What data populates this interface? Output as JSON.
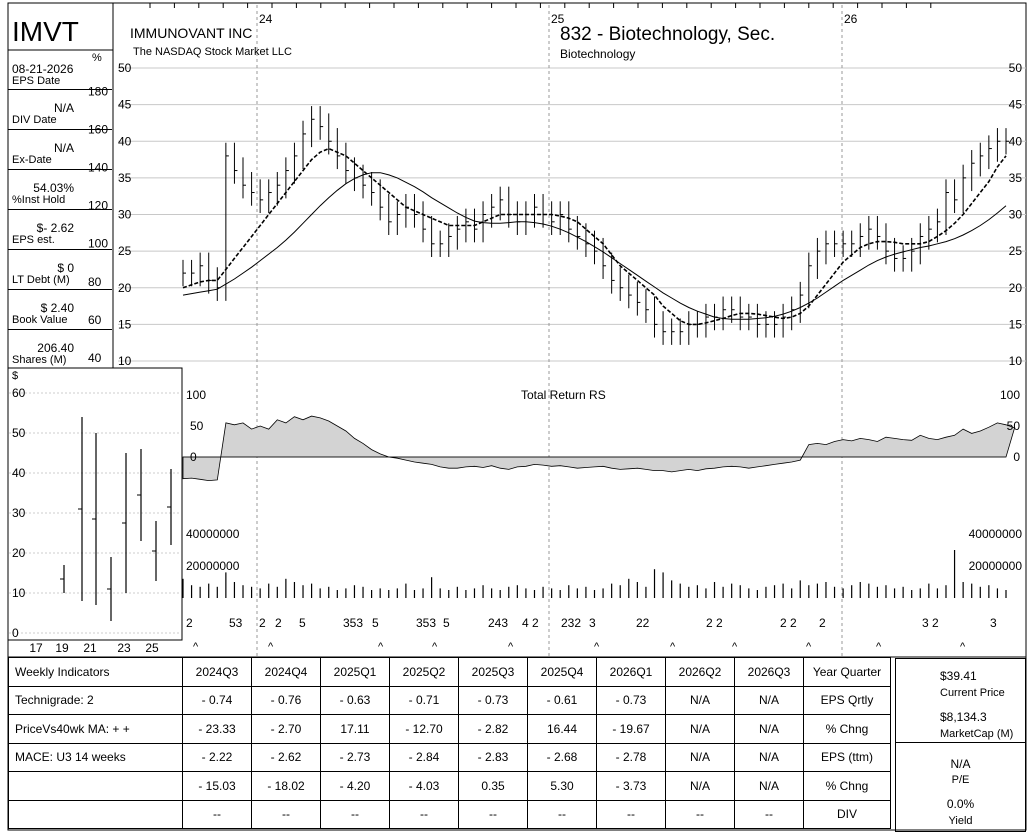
{
  "header": {
    "ticker": "IMVT",
    "company": "IMMUNOVANT INC",
    "exchange": "The NASDAQ Stock Market LLC",
    "group": "832 - Biotechnology, Sec.",
    "subgroup": "Biotechnology",
    "pct_symbol": "%",
    "dollar_symbol": "$"
  },
  "metrics": [
    {
      "value": "08-21-2026",
      "label": "EPS Date"
    },
    {
      "value": "N/A",
      "label": "DIV Date"
    },
    {
      "value": "N/A",
      "label": "Ex-Date"
    },
    {
      "value": "54.03%",
      "label": "%Inst Hold"
    },
    {
      "value": "$- 2.62",
      "label": "EPS est."
    },
    {
      "value": "$ 0",
      "label": "LT Debt (M)"
    },
    {
      "value": "$ 2.40",
      "label": "Book Value"
    },
    {
      "value": "206.40",
      "label": "Shares (M)"
    }
  ],
  "chart_data": [
    {
      "type": "line",
      "title": "",
      "subtype": "weekly price bars (OHLC) with 10-week and 40-week moving averages",
      "x_year_labels": [
        "24",
        "25",
        "26"
      ],
      "y_ticks": [
        10,
        15,
        20,
        25,
        30,
        35,
        40,
        45,
        50
      ],
      "ylim": [
        10,
        50
      ],
      "pct_axis_ticks": [
        40,
        60,
        80,
        100,
        120,
        140,
        160,
        180
      ],
      "grid": true,
      "close": [
        22,
        22,
        23,
        21,
        20,
        38,
        36,
        34,
        33,
        32,
        33,
        34,
        36,
        38,
        41,
        43,
        42,
        40,
        38,
        36,
        35,
        34,
        33,
        31,
        29,
        30,
        31,
        30,
        28,
        26,
        26,
        27,
        28,
        29,
        28,
        30,
        31,
        32,
        30,
        29,
        30,
        31,
        30,
        29,
        30,
        28,
        27,
        26,
        25,
        23,
        21,
        20,
        19,
        18,
        17,
        15,
        14,
        14,
        14,
        15,
        15,
        16,
        16,
        17,
        17,
        16,
        16,
        15,
        15,
        15,
        16,
        17,
        19,
        23,
        25,
        26,
        26,
        26,
        26,
        27,
        28,
        27,
        25,
        24,
        24,
        25,
        27,
        28,
        29,
        33,
        32,
        35,
        37,
        38,
        39,
        40,
        40
      ],
      "ma10": [
        20,
        20.4,
        20.8,
        21,
        21,
        22.5,
        24,
        25.5,
        27,
        28.5,
        30,
        31.5,
        33,
        34.5,
        36,
        37.5,
        38.5,
        39,
        38.5,
        38,
        37,
        36,
        35,
        34,
        33,
        32,
        31,
        30.5,
        30,
        29.5,
        29,
        28.5,
        28.5,
        28.5,
        28.5,
        29,
        29.5,
        30,
        30,
        30,
        30,
        30,
        30,
        30,
        29.8,
        29.5,
        29,
        28,
        27,
        26,
        24.5,
        23,
        22,
        21,
        20,
        19,
        17.5,
        16.5,
        15.5,
        15,
        15,
        15.2,
        15.5,
        15.8,
        16.2,
        16.5,
        16.5,
        16.4,
        16.2,
        16,
        15.8,
        16,
        16.5,
        17.5,
        19,
        20.5,
        22,
        23.5,
        24.5,
        25.5,
        26,
        26.3,
        26.3,
        26.2,
        26,
        26,
        26,
        26.3,
        27,
        27.8,
        28.8,
        30,
        31.5,
        33,
        34.5,
        36.5,
        38
      ],
      "ma40": [
        19,
        19.2,
        19.4,
        19.6,
        19.8,
        20.5,
        21.2,
        22,
        22.8,
        23.7,
        24.6,
        25.5,
        26.5,
        27.6,
        28.8,
        30,
        31.2,
        32.3,
        33.3,
        34.2,
        34.9,
        35.4,
        35.7,
        35.7,
        35.4,
        35,
        34.4,
        33.8,
        33.1,
        32.3,
        31.6,
        30.9,
        30.2,
        29.6,
        29.1,
        28.9,
        28.8,
        28.8,
        28.9,
        29,
        29,
        28.9,
        28.7,
        28.4,
        28,
        27.5,
        26.9,
        26.3,
        25.6,
        24.9,
        24.1,
        23.3,
        22.5,
        21.7,
        20.9,
        20.1,
        19.3,
        18.6,
        17.9,
        17.3,
        16.8,
        16.4,
        16,
        15.8,
        15.7,
        15.7,
        15.7,
        15.8,
        15.9,
        16.1,
        16.4,
        16.8,
        17.3,
        17.9,
        18.6,
        19.4,
        20.2,
        21,
        21.7,
        22.4,
        23.1,
        23.7,
        24.2,
        24.6,
        24.9,
        25.2,
        25.5,
        25.7,
        26,
        26.3,
        26.7,
        27.2,
        27.8,
        28.5,
        29.3,
        30.2,
        31.2
      ]
    },
    {
      "type": "area",
      "title": "Total Return RS",
      "y_ticks": [
        0,
        50,
        100
      ],
      "ylim": [
        -50,
        100
      ],
      "values": [
        -35,
        -34,
        -36,
        -38,
        -37,
        55,
        52,
        55,
        45,
        50,
        45,
        60,
        55,
        65,
        60,
        66,
        63,
        58,
        50,
        42,
        30,
        22,
        12,
        5,
        0,
        -2,
        -5,
        -8,
        -10,
        -12,
        -16,
        -18,
        -18,
        -16,
        -15,
        -17,
        -14,
        -18,
        -20,
        -16,
        -15,
        -12,
        -13,
        -15,
        -14,
        -16,
        -18,
        -17,
        -16,
        -15,
        -18,
        -20,
        -19,
        -18,
        -20,
        -22,
        -22,
        -24,
        -22,
        -20,
        -22,
        -19,
        -18,
        -16,
        -15,
        -16,
        -18,
        -16,
        -14,
        -12,
        -10,
        -8,
        -5,
        20,
        22,
        20,
        25,
        28,
        26,
        30,
        28,
        25,
        32,
        30,
        28,
        27,
        35,
        30,
        28,
        32,
        35,
        45,
        38,
        42,
        48,
        55,
        52,
        47
      ]
    },
    {
      "type": "bar",
      "title": "",
      "series_label": "Weekly volume",
      "y_ticks": [
        20000000,
        40000000
      ],
      "ylim": [
        0,
        45000000
      ],
      "values": [
        12000000,
        8000000,
        7000000,
        9000000,
        7000000,
        16000000,
        10000000,
        8000000,
        7000000,
        6000000,
        9000000,
        7000000,
        12000000,
        10000000,
        8000000,
        9000000,
        6000000,
        7000000,
        5000000,
        6000000,
        8000000,
        7000000,
        5000000,
        6000000,
        5000000,
        6000000,
        9000000,
        5000000,
        6000000,
        13000000,
        6000000,
        5000000,
        7000000,
        5000000,
        6000000,
        8000000,
        6000000,
        5000000,
        7000000,
        8000000,
        6000000,
        5000000,
        7000000,
        6000000,
        5000000,
        8000000,
        6000000,
        7000000,
        5000000,
        6000000,
        9000000,
        8000000,
        12000000,
        10000000,
        7000000,
        18000000,
        16000000,
        11000000,
        9000000,
        7000000,
        8000000,
        6000000,
        10000000,
        7000000,
        9000000,
        8000000,
        6000000,
        5000000,
        7000000,
        8000000,
        9000000,
        6000000,
        11000000,
        8000000,
        9000000,
        10000000,
        7000000,
        6000000,
        8000000,
        10000000,
        9000000,
        7000000,
        8000000,
        6000000,
        7000000,
        5000000,
        6000000,
        9000000,
        6000000,
        8000000,
        30000000,
        10000000,
        9000000,
        7000000,
        8000000,
        6000000,
        5000000
      ]
    },
    {
      "type": "bar",
      "title": "",
      "subtype": "yearly high-low ranges",
      "y_ticks": [
        0,
        10,
        20,
        30,
        40,
        50,
        60
      ],
      "x_ticks": [
        "17",
        "19",
        "21",
        "23",
        "25"
      ],
      "ylim": [
        0,
        62
      ],
      "ranges": [
        {
          "x": "2019",
          "low": 10,
          "high": 17
        },
        {
          "x": "2020",
          "low": 8,
          "high": 54
        },
        {
          "x": "2021",
          "low": 7,
          "high": 50
        },
        {
          "x": "2022",
          "low": 3,
          "high": 19
        },
        {
          "x": "2023",
          "low": 10,
          "high": 45
        },
        {
          "x": "2024",
          "low": 23,
          "high": 46
        },
        {
          "x": "2025",
          "low": 13,
          "high": 28
        },
        {
          "x": "2026",
          "low": 22,
          "high": 41
        }
      ]
    }
  ],
  "event_markers": [
    "2",
    "53",
    "2",
    "2",
    "5",
    "353",
    "5",
    "353",
    "5",
    "243",
    "4 2",
    "232",
    "3",
    "22",
    "2 2",
    "2 2",
    "2",
    "3 2",
    "3"
  ],
  "indicators": {
    "headers": [
      "Weekly Indicators",
      "2024Q3",
      "2024Q4",
      "2025Q1",
      "2025Q2",
      "2025Q3",
      "2025Q4",
      "2026Q1",
      "2026Q2",
      "2026Q3",
      "Year Quarter"
    ],
    "rows": [
      [
        "Technigrade: 2",
        "- 0.74",
        "- 0.76",
        "- 0.63",
        "- 0.71",
        "- 0.73",
        "- 0.61",
        "- 0.73",
        "N/A",
        "N/A",
        "EPS Qrtly"
      ],
      [
        "PriceVs40wk MA:  + +",
        "- 23.33",
        "- 2.70",
        "17.11",
        "- 12.70",
        "- 2.82",
        "16.44",
        "- 19.67",
        "N/A",
        "N/A",
        "% Chng"
      ],
      [
        "MACE: U3  14 weeks",
        "- 2.22",
        "- 2.62",
        "- 2.73",
        "- 2.84",
        "- 2.83",
        "- 2.68",
        "- 2.78",
        "N/A",
        "N/A",
        "EPS (ttm)"
      ],
      [
        "",
        "- 15.03",
        "- 18.02",
        "- 4.20",
        "- 4.03",
        "0.35",
        "5.30",
        "- 3.73",
        "N/A",
        "N/A",
        "% Chng"
      ],
      [
        "",
        "--",
        "--",
        "--",
        "--",
        "--",
        "--",
        "--",
        "--",
        "--",
        "DIV"
      ]
    ]
  },
  "summary": [
    {
      "value": "$39.41",
      "label": "Current Price"
    },
    {
      "value": "$8,134.3",
      "label": "MarketCap (M)"
    },
    {
      "value": "N/A",
      "label": "P/E"
    },
    {
      "value": "0.0%",
      "label": "Yield"
    }
  ],
  "colors": {
    "rs_fill": "#d3d3d3",
    "grid": "#c8c8c8",
    "line": "#000000"
  }
}
